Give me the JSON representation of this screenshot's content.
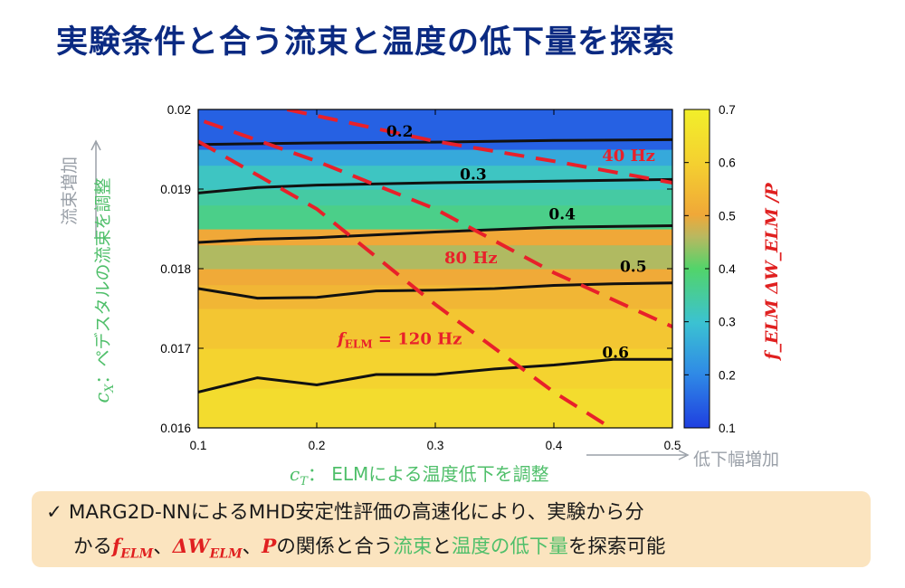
{
  "title": "実験条件と合う流束と温度の低下量を探索",
  "y_side_label": "流束増加",
  "y_axis_label_sym": "c_X",
  "y_axis_label_text": "：ペデスタルの流束を調整",
  "x_axis_label_sym": "c_T",
  "x_axis_label_text": "： ELMによる温度低下を調整",
  "x_side_label": "低下幅増加",
  "colorbar_title": "f_ELM ΔW_ELM /P",
  "note": {
    "check": "✓",
    "line1": "MARG2D-NNによるMHD安定性評価の高速化により、実験から分",
    "line2_a": "かる",
    "line2_f": "f",
    "line2_f_sub": "ELM",
    "line2_sep1": "、",
    "line2_dw": "ΔW",
    "line2_dw_sub": "ELM",
    "line2_sep2": "、",
    "line2_p": "P",
    "line2_b": "の関係と合う",
    "line2_c": "流束",
    "line2_d": "と",
    "line2_e": "温度の低下量",
    "line2_g": "を探索可能"
  },
  "colors": {
    "title": "#0b2a82",
    "contour": "#111111",
    "freq_line": "#e8202a",
    "green_text": "#4fbf6a",
    "gray_text": "#9aa0a8",
    "note_bg": "#fbe4bf"
  },
  "chart_data": {
    "type": "heatmap",
    "xlim": [
      0.1,
      0.5
    ],
    "ylim": [
      0.016,
      0.02
    ],
    "x_ticks": [
      "0.1",
      "0.2",
      "0.3",
      "0.4",
      "0.5"
    ],
    "y_ticks": [
      "0.016",
      "0.017",
      "0.018",
      "0.019",
      "0.02"
    ],
    "colorbar": {
      "range": [
        0.1,
        0.7
      ],
      "ticks": [
        "0.1",
        "0.2",
        "0.3",
        "0.4",
        "0.5",
        "0.6",
        "0.7"
      ]
    },
    "heatmap_rows": [
      {
        "y0": 0.016,
        "y1": 0.0165,
        "value": 0.64
      },
      {
        "y0": 0.0165,
        "y1": 0.017,
        "value": 0.61
      },
      {
        "y0": 0.017,
        "y1": 0.0175,
        "value": 0.575
      },
      {
        "y0": 0.0175,
        "y1": 0.0178,
        "value": 0.535
      },
      {
        "y0": 0.0178,
        "y1": 0.018,
        "value": 0.505
      },
      {
        "y0": 0.018,
        "y1": 0.0183,
        "value": 0.455
      },
      {
        "y0": 0.0183,
        "y1": 0.0185,
        "value": 0.5
      },
      {
        "y0": 0.0185,
        "y1": 0.0188,
        "value": 0.37
      },
      {
        "y0": 0.0188,
        "y1": 0.019,
        "value": 0.345
      },
      {
        "y0": 0.019,
        "y1": 0.0193,
        "value": 0.315
      },
      {
        "y0": 0.0193,
        "y1": 0.0195,
        "value": 0.255
      },
      {
        "y0": 0.0195,
        "y1": 0.02,
        "value": 0.145
      }
    ],
    "contours": [
      {
        "label": "0.2",
        "label_at": [
          0.27,
          0.01966
        ],
        "points": [
          [
            0.1,
            0.01956
          ],
          [
            0.2,
            0.01958
          ],
          [
            0.3,
            0.01959
          ],
          [
            0.4,
            0.01961
          ],
          [
            0.5,
            0.01962
          ]
        ]
      },
      {
        "label": "0.3",
        "label_at": [
          0.332,
          0.01912
        ],
        "points": [
          [
            0.1,
            0.01895
          ],
          [
            0.15,
            0.01902
          ],
          [
            0.2,
            0.01905
          ],
          [
            0.3,
            0.01908
          ],
          [
            0.4,
            0.0191
          ],
          [
            0.5,
            0.01912
          ]
        ]
      },
      {
        "label": "0.4",
        "label_at": [
          0.407,
          0.01862
        ],
        "points": [
          [
            0.1,
            0.01833
          ],
          [
            0.15,
            0.01837
          ],
          [
            0.2,
            0.01839
          ],
          [
            0.3,
            0.01846
          ],
          [
            0.4,
            0.01852
          ],
          [
            0.5,
            0.01854
          ]
        ]
      },
      {
        "label": "0.5",
        "label_at": [
          0.467,
          0.01796
        ],
        "points": [
          [
            0.1,
            0.01775
          ],
          [
            0.15,
            0.01763
          ],
          [
            0.2,
            0.01764
          ],
          [
            0.25,
            0.01772
          ],
          [
            0.3,
            0.01773
          ],
          [
            0.35,
            0.01775
          ],
          [
            0.4,
            0.01779
          ],
          [
            0.45,
            0.01781
          ],
          [
            0.5,
            0.01782
          ]
        ]
      },
      {
        "label": "0.6",
        "label_at": [
          0.452,
          0.01688
        ],
        "points": [
          [
            0.1,
            0.01645
          ],
          [
            0.15,
            0.01663
          ],
          [
            0.2,
            0.01654
          ],
          [
            0.25,
            0.01667
          ],
          [
            0.3,
            0.01667
          ],
          [
            0.35,
            0.01674
          ],
          [
            0.4,
            0.01679
          ],
          [
            0.45,
            0.01686
          ],
          [
            0.5,
            0.01686
          ]
        ]
      }
    ],
    "frequency_lines": [
      {
        "label": "40 Hz",
        "label_at": [
          0.463,
          0.01935
        ],
        "points": [
          [
            0.175,
            0.02
          ],
          [
            0.3,
            0.0196
          ],
          [
            0.4,
            0.01935
          ],
          [
            0.5,
            0.01908
          ]
        ]
      },
      {
        "label": "80 Hz",
        "label_at": [
          0.33,
          0.01807
        ],
        "points": [
          [
            0.105,
            0.01985
          ],
          [
            0.2,
            0.01935
          ],
          [
            0.3,
            0.01875
          ],
          [
            0.4,
            0.01795
          ],
          [
            0.5,
            0.01727
          ]
        ]
      },
      {
        "label": "120 Hz",
        "label_at": [
          0.27,
          0.01705
        ],
        "label_prefix": "f",
        "label_sub": "ELM",
        "label_eq": " = ",
        "points": [
          [
            0.1,
            0.0196
          ],
          [
            0.2,
            0.01875
          ],
          [
            0.3,
            0.01755
          ],
          [
            0.4,
            0.01645
          ],
          [
            0.448,
            0.016
          ]
        ]
      }
    ]
  }
}
